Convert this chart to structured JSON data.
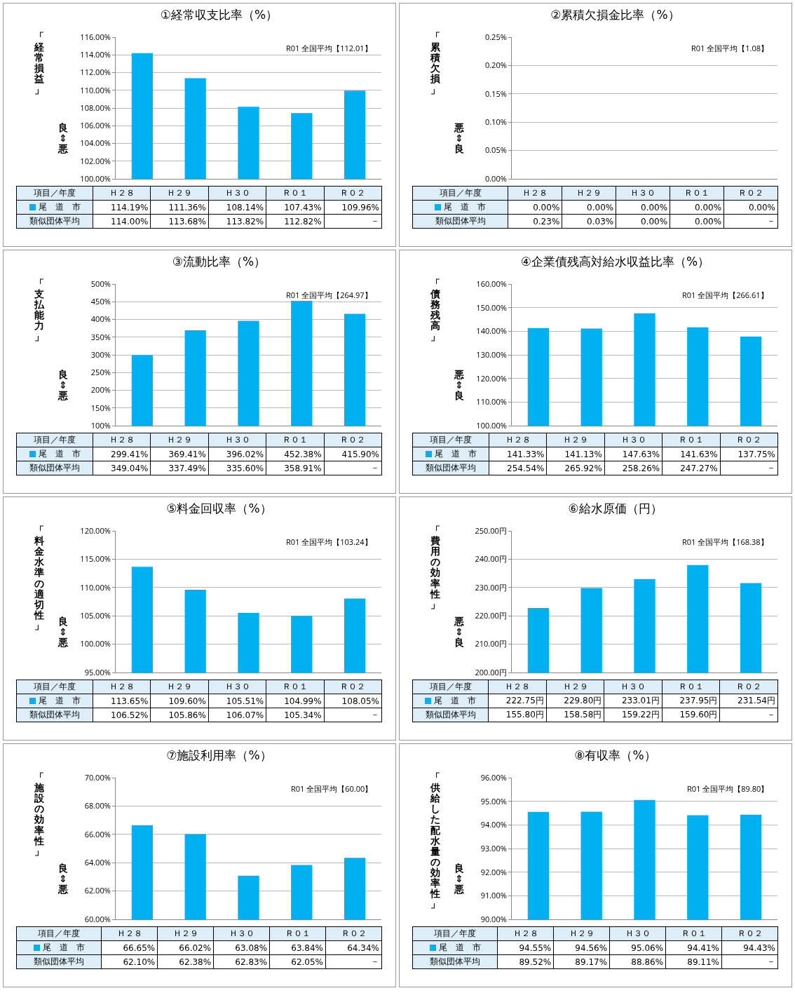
{
  "chart_data": [
    {
      "type": "bar",
      "title": "①経常収支比率（%）",
      "xlabel": "項目／年度",
      "ylabel": "「経常損益」",
      "annotations": [
        "R01 全国平均【112.01】",
        "良⇕悪"
      ],
      "categories": [
        "Ｈ２８",
        "Ｈ２９",
        "Ｈ３０",
        "Ｒ０１",
        "Ｒ０２"
      ],
      "series": [
        {
          "name": "尾　道　市",
          "color": "#00b0f0",
          "values": [
            114.19,
            111.36,
            108.14,
            107.43,
            109.96
          ],
          "value_labels": [
            "114.19%",
            "111.36%",
            "108.14%",
            "107.43%",
            "109.96%"
          ]
        },
        {
          "name": "類似団体平均",
          "values": [
            null,
            null,
            null,
            null,
            null
          ],
          "value_labels": [
            "114.00%",
            "113.68%",
            "113.82%",
            "112.82%",
            "－"
          ]
        }
      ],
      "ylim": [
        100,
        116
      ],
      "yticks": [
        {
          "value": 100,
          "label": "100.00%"
        },
        {
          "value": 102,
          "label": "102.00%"
        },
        {
          "value": 104,
          "label": "104.00%"
        },
        {
          "value": 106,
          "label": "106.00%"
        },
        {
          "value": 108,
          "label": "108.00%"
        },
        {
          "value": 110,
          "label": "110.00%"
        },
        {
          "value": 112,
          "label": "112.00%"
        },
        {
          "value": 114,
          "label": "114.00%"
        },
        {
          "value": 116,
          "label": "116.00%"
        }
      ],
      "grid": "y",
      "tick_labels": "y"
    },
    {
      "type": "bar",
      "title": "②累積欠損金比率（%）",
      "xlabel": "項目／年度",
      "ylabel": "「累積欠損」",
      "annotations": [
        "R01 全国平均【1.08】",
        "悪⇕良"
      ],
      "categories": [
        "Ｈ２８",
        "Ｈ２９",
        "Ｈ３０",
        "Ｒ０１",
        "Ｒ０２"
      ],
      "series": [
        {
          "name": "尾　道　市",
          "color": "#00b0f0",
          "values": [
            0,
            0,
            0,
            0,
            0
          ],
          "value_labels": [
            "0.00%",
            "0.00%",
            "0.00%",
            "0.00%",
            "0.00%"
          ]
        },
        {
          "name": "類似団体平均",
          "values": [
            null,
            null,
            null,
            null,
            null
          ],
          "value_labels": [
            "0.23%",
            "0.03%",
            "0.00%",
            "0.00%",
            "－"
          ]
        }
      ],
      "ylim": [
        0,
        0.25
      ],
      "yticks": [
        {
          "value": 0,
          "label": "0.00%"
        },
        {
          "value": 0.05,
          "label": "0.05%"
        },
        {
          "value": 0.1,
          "label": "0.10%"
        },
        {
          "value": 0.15,
          "label": "0.15%"
        },
        {
          "value": 0.2,
          "label": "0.20%"
        },
        {
          "value": 0.25,
          "label": "0.25%"
        }
      ],
      "grid": "y",
      "tick_labels": "y"
    },
    {
      "type": "bar",
      "title": "③流動比率（%）",
      "xlabel": "項目／年度",
      "ylabel": "「支払能力」",
      "annotations": [
        "R01 全国平均【264.97】",
        "良⇕悪"
      ],
      "categories": [
        "Ｈ２８",
        "Ｈ２９",
        "Ｈ３０",
        "Ｒ０１",
        "Ｒ０２"
      ],
      "series": [
        {
          "name": "尾　道　市",
          "color": "#00b0f0",
          "values": [
            299.41,
            369.41,
            396.02,
            452.38,
            415.9
          ],
          "value_labels": [
            "299.41%",
            "369.41%",
            "396.02%",
            "452.38%",
            "415.90%"
          ]
        },
        {
          "name": "類似団体平均",
          "values": [
            null,
            null,
            null,
            null,
            null
          ],
          "value_labels": [
            "349.04%",
            "337.49%",
            "335.60%",
            "358.91%",
            "－"
          ]
        }
      ],
      "ylim": [
        100,
        500
      ],
      "yticks": [
        {
          "value": 100,
          "label": "100%"
        },
        {
          "value": 150,
          "label": "150%"
        },
        {
          "value": 200,
          "label": "200%"
        },
        {
          "value": 250,
          "label": "250%"
        },
        {
          "value": 300,
          "label": "300%"
        },
        {
          "value": 350,
          "label": "350%"
        },
        {
          "value": 400,
          "label": "400%"
        },
        {
          "value": 450,
          "label": "450%"
        },
        {
          "value": 500,
          "label": "500%"
        }
      ],
      "grid": "y",
      "tick_labels": "y"
    },
    {
      "type": "bar",
      "title": "④企業債残高対給水収益比率（%）",
      "xlabel": "項目／年度",
      "ylabel": "「債務残高」",
      "annotations": [
        "R01 全国平均【266.61】",
        "悪⇕良"
      ],
      "categories": [
        "Ｈ２８",
        "Ｈ２９",
        "Ｈ３０",
        "Ｒ０１",
        "Ｒ０２"
      ],
      "series": [
        {
          "name": "尾　道　市",
          "color": "#00b0f0",
          "values": [
            141.33,
            141.13,
            147.63,
            141.63,
            137.75
          ],
          "value_labels": [
            "141.33%",
            "141.13%",
            "147.63%",
            "141.63%",
            "137.75%"
          ]
        },
        {
          "name": "類似団体平均",
          "values": [
            null,
            null,
            null,
            null,
            null
          ],
          "value_labels": [
            "254.54%",
            "265.92%",
            "258.26%",
            "247.27%",
            "－"
          ]
        }
      ],
      "ylim": [
        100,
        160
      ],
      "yticks": [
        {
          "value": 100,
          "label": "100.00%"
        },
        {
          "value": 110,
          "label": "110.00%"
        },
        {
          "value": 120,
          "label": "120.00%"
        },
        {
          "value": 130,
          "label": "130.00%"
        },
        {
          "value": 140,
          "label": "140.00%"
        },
        {
          "value": 150,
          "label": "150.00%"
        },
        {
          "value": 160,
          "label": "160.00%"
        }
      ],
      "grid": "y",
      "tick_labels": "y"
    },
    {
      "type": "bar",
      "title": "⑤料金回収率（%）",
      "xlabel": "項目／年度",
      "ylabel": "「料金水準の適切性」",
      "annotations": [
        "R01 全国平均【103.24】",
        "良⇕悪"
      ],
      "categories": [
        "Ｈ２８",
        "Ｈ２９",
        "Ｈ３０",
        "Ｒ０１",
        "Ｒ０２"
      ],
      "series": [
        {
          "name": "尾　道　市",
          "color": "#00b0f0",
          "values": [
            113.65,
            109.6,
            105.51,
            104.99,
            108.05
          ],
          "value_labels": [
            "113.65%",
            "109.60%",
            "105.51%",
            "104.99%",
            "108.05%"
          ]
        },
        {
          "name": "類似団体平均",
          "values": [
            null,
            null,
            null,
            null,
            null
          ],
          "value_labels": [
            "106.52%",
            "105.86%",
            "106.07%",
            "105.34%",
            "－"
          ]
        }
      ],
      "ylim": [
        95,
        120
      ],
      "yticks": [
        {
          "value": 95,
          "label": "95.00%"
        },
        {
          "value": 100,
          "label": "100.00%"
        },
        {
          "value": 105,
          "label": "105.00%"
        },
        {
          "value": 110,
          "label": "110.00%"
        },
        {
          "value": 115,
          "label": "115.00%"
        },
        {
          "value": 120,
          "label": "120.00%"
        }
      ],
      "grid": "y",
      "tick_labels": "y"
    },
    {
      "type": "bar",
      "title": "⑥給水原価（円）",
      "xlabel": "項目／年度",
      "ylabel": "「費用の効率性」",
      "annotations": [
        "R01 全国平均【168.38】",
        "悪⇕良"
      ],
      "categories": [
        "Ｈ２８",
        "Ｈ２９",
        "Ｈ３０",
        "Ｒ０１",
        "Ｒ０２"
      ],
      "series": [
        {
          "name": "尾　道　市",
          "color": "#00b0f0",
          "values": [
            222.75,
            229.8,
            233.01,
            237.95,
            231.54
          ],
          "value_labels": [
            "222.75円",
            "229.80円",
            "233.01円",
            "237.95円",
            "231.54円"
          ]
        },
        {
          "name": "類似団体平均",
          "values": [
            null,
            null,
            null,
            null,
            null
          ],
          "value_labels": [
            "155.80円",
            "158.58円",
            "159.22円",
            "159.60円",
            "－"
          ]
        }
      ],
      "ylim": [
        200,
        250
      ],
      "yticks": [
        {
          "value": 200,
          "label": "200.00円"
        },
        {
          "value": 210,
          "label": "210.00円"
        },
        {
          "value": 220,
          "label": "220.00円"
        },
        {
          "value": 230,
          "label": "230.00円"
        },
        {
          "value": 240,
          "label": "240.00円"
        },
        {
          "value": 250,
          "label": "250.00円"
        }
      ],
      "grid": "y",
      "tick_labels": "y"
    },
    {
      "type": "bar",
      "title": "⑦施設利用率（%）",
      "xlabel": "項目／年度",
      "ylabel": "「施設の効率性」",
      "annotations": [
        "R01 全国平均【60.00】",
        "良⇕悪"
      ],
      "categories": [
        "Ｈ２８",
        "Ｈ２９",
        "Ｈ３０",
        "Ｒ０１",
        "Ｒ０２"
      ],
      "series": [
        {
          "name": "尾　道　市",
          "color": "#00b0f0",
          "values": [
            66.65,
            66.02,
            63.08,
            63.84,
            64.34
          ],
          "value_labels": [
            "66.65%",
            "66.02%",
            "63.08%",
            "63.84%",
            "64.34%"
          ]
        },
        {
          "name": "類似団体平均",
          "values": [
            null,
            null,
            null,
            null,
            null
          ],
          "value_labels": [
            "62.10%",
            "62.38%",
            "62.83%",
            "62.05%",
            "－"
          ]
        }
      ],
      "ylim": [
        60,
        70
      ],
      "yticks": [
        {
          "value": 60,
          "label": "60.00%"
        },
        {
          "value": 62,
          "label": "62.00%"
        },
        {
          "value": 64,
          "label": "64.00%"
        },
        {
          "value": 66,
          "label": "66.00%"
        },
        {
          "value": 68,
          "label": "68.00%"
        },
        {
          "value": 70,
          "label": "70.00%"
        }
      ],
      "grid": "y",
      "tick_labels": "y"
    },
    {
      "type": "bar",
      "title": "⑧有収率（%）",
      "xlabel": "項目／年度",
      "ylabel": "「供給した配水量の効率性」",
      "annotations": [
        "R01 全国平均【89.80】",
        "良⇕悪"
      ],
      "categories": [
        "Ｈ２８",
        "Ｈ２９",
        "Ｈ３０",
        "Ｒ０１",
        "Ｒ０２"
      ],
      "series": [
        {
          "name": "尾　道　市",
          "color": "#00b0f0",
          "values": [
            94.55,
            94.56,
            95.06,
            94.41,
            94.43
          ],
          "value_labels": [
            "94.55%",
            "94.56%",
            "95.06%",
            "94.41%",
            "94.43%"
          ]
        },
        {
          "name": "類似団体平均",
          "values": [
            null,
            null,
            null,
            null,
            null
          ],
          "value_labels": [
            "89.52%",
            "89.17%",
            "88.86%",
            "89.11%",
            "－"
          ]
        }
      ],
      "ylim": [
        90,
        96
      ],
      "yticks": [
        {
          "value": 90,
          "label": "90.00%"
        },
        {
          "value": 91,
          "label": "91.00%"
        },
        {
          "value": 92,
          "label": "92.00%"
        },
        {
          "value": 93,
          "label": "93.00%"
        },
        {
          "value": 94,
          "label": "94.00%"
        },
        {
          "value": 95,
          "label": "95.00%"
        },
        {
          "value": 96,
          "label": "96.00%"
        }
      ],
      "grid": "y",
      "tick_labels": "y"
    }
  ]
}
